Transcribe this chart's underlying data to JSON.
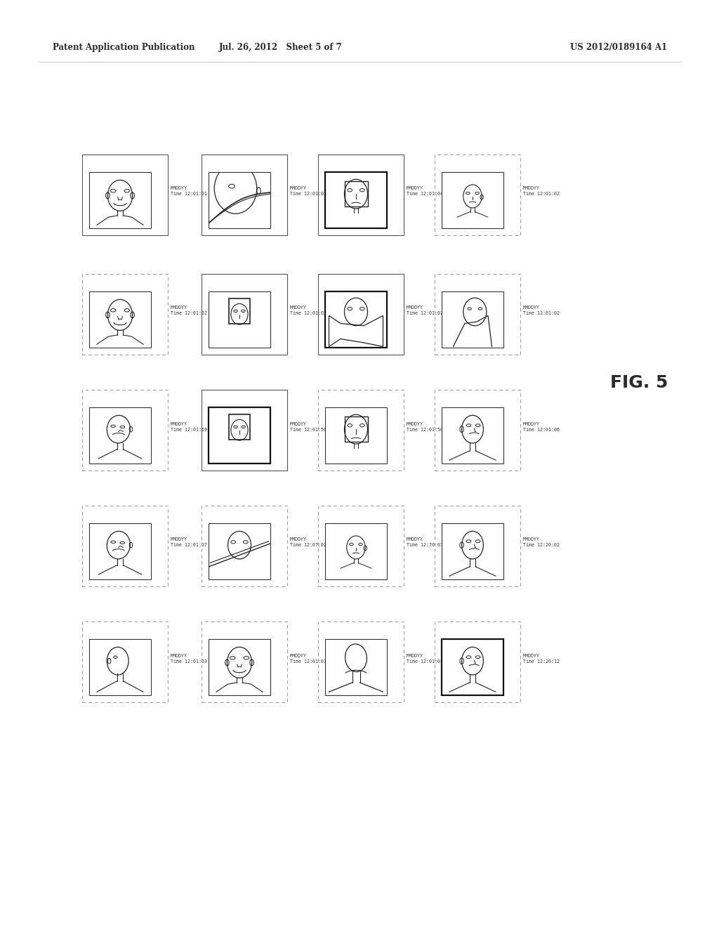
{
  "background_color": "#ffffff",
  "header_left": "Patent Application Publication",
  "header_center": "Jul. 26, 2012   Sheet 5 of 7",
  "header_right": "US 2012/0189164 A1",
  "fig_label": "FIG. 5",
  "grid_rows": 5,
  "grid_cols": 4,
  "cell_labels": [
    [
      "MMDDYY\nTime 12:01:01",
      "MMDDYY\nTime 12:01:03",
      "MMDDYY\nTime 12:01:04",
      "MMDDYY\nTime 12:01:02"
    ],
    [
      "MMDDYY\nTime 12:01:02",
      "MMDDYY\nTime 12:01:02",
      "MMDDYY\nTime 12:01:02",
      "MMDDYY\nTime 12:01:02"
    ],
    [
      "MMDDYY\nTime 12:01:69",
      "MMDDYY\nTime 12:01:50",
      "MMDDYY\nTime 12:01:50",
      "MMDDYY\nTime 12:01:06"
    ],
    [
      "MMDDYY\nTime 12:01:07",
      "MMDDYY\nTime 12:07:02",
      "MMDDYY\nTime 12:70:07",
      "MMDDYY\nTime 12:20:02"
    ],
    [
      "MMDDYY\nTime 12:01:03",
      "MMDDYY\nTime 12:01:03",
      "MMDDYY\nTime 12:01:01",
      "MMDDYY\nTime 12:20:12"
    ]
  ],
  "header_fontsize": 8.5,
  "label_fontsize": 4.8,
  "fig_fontsize": 18
}
